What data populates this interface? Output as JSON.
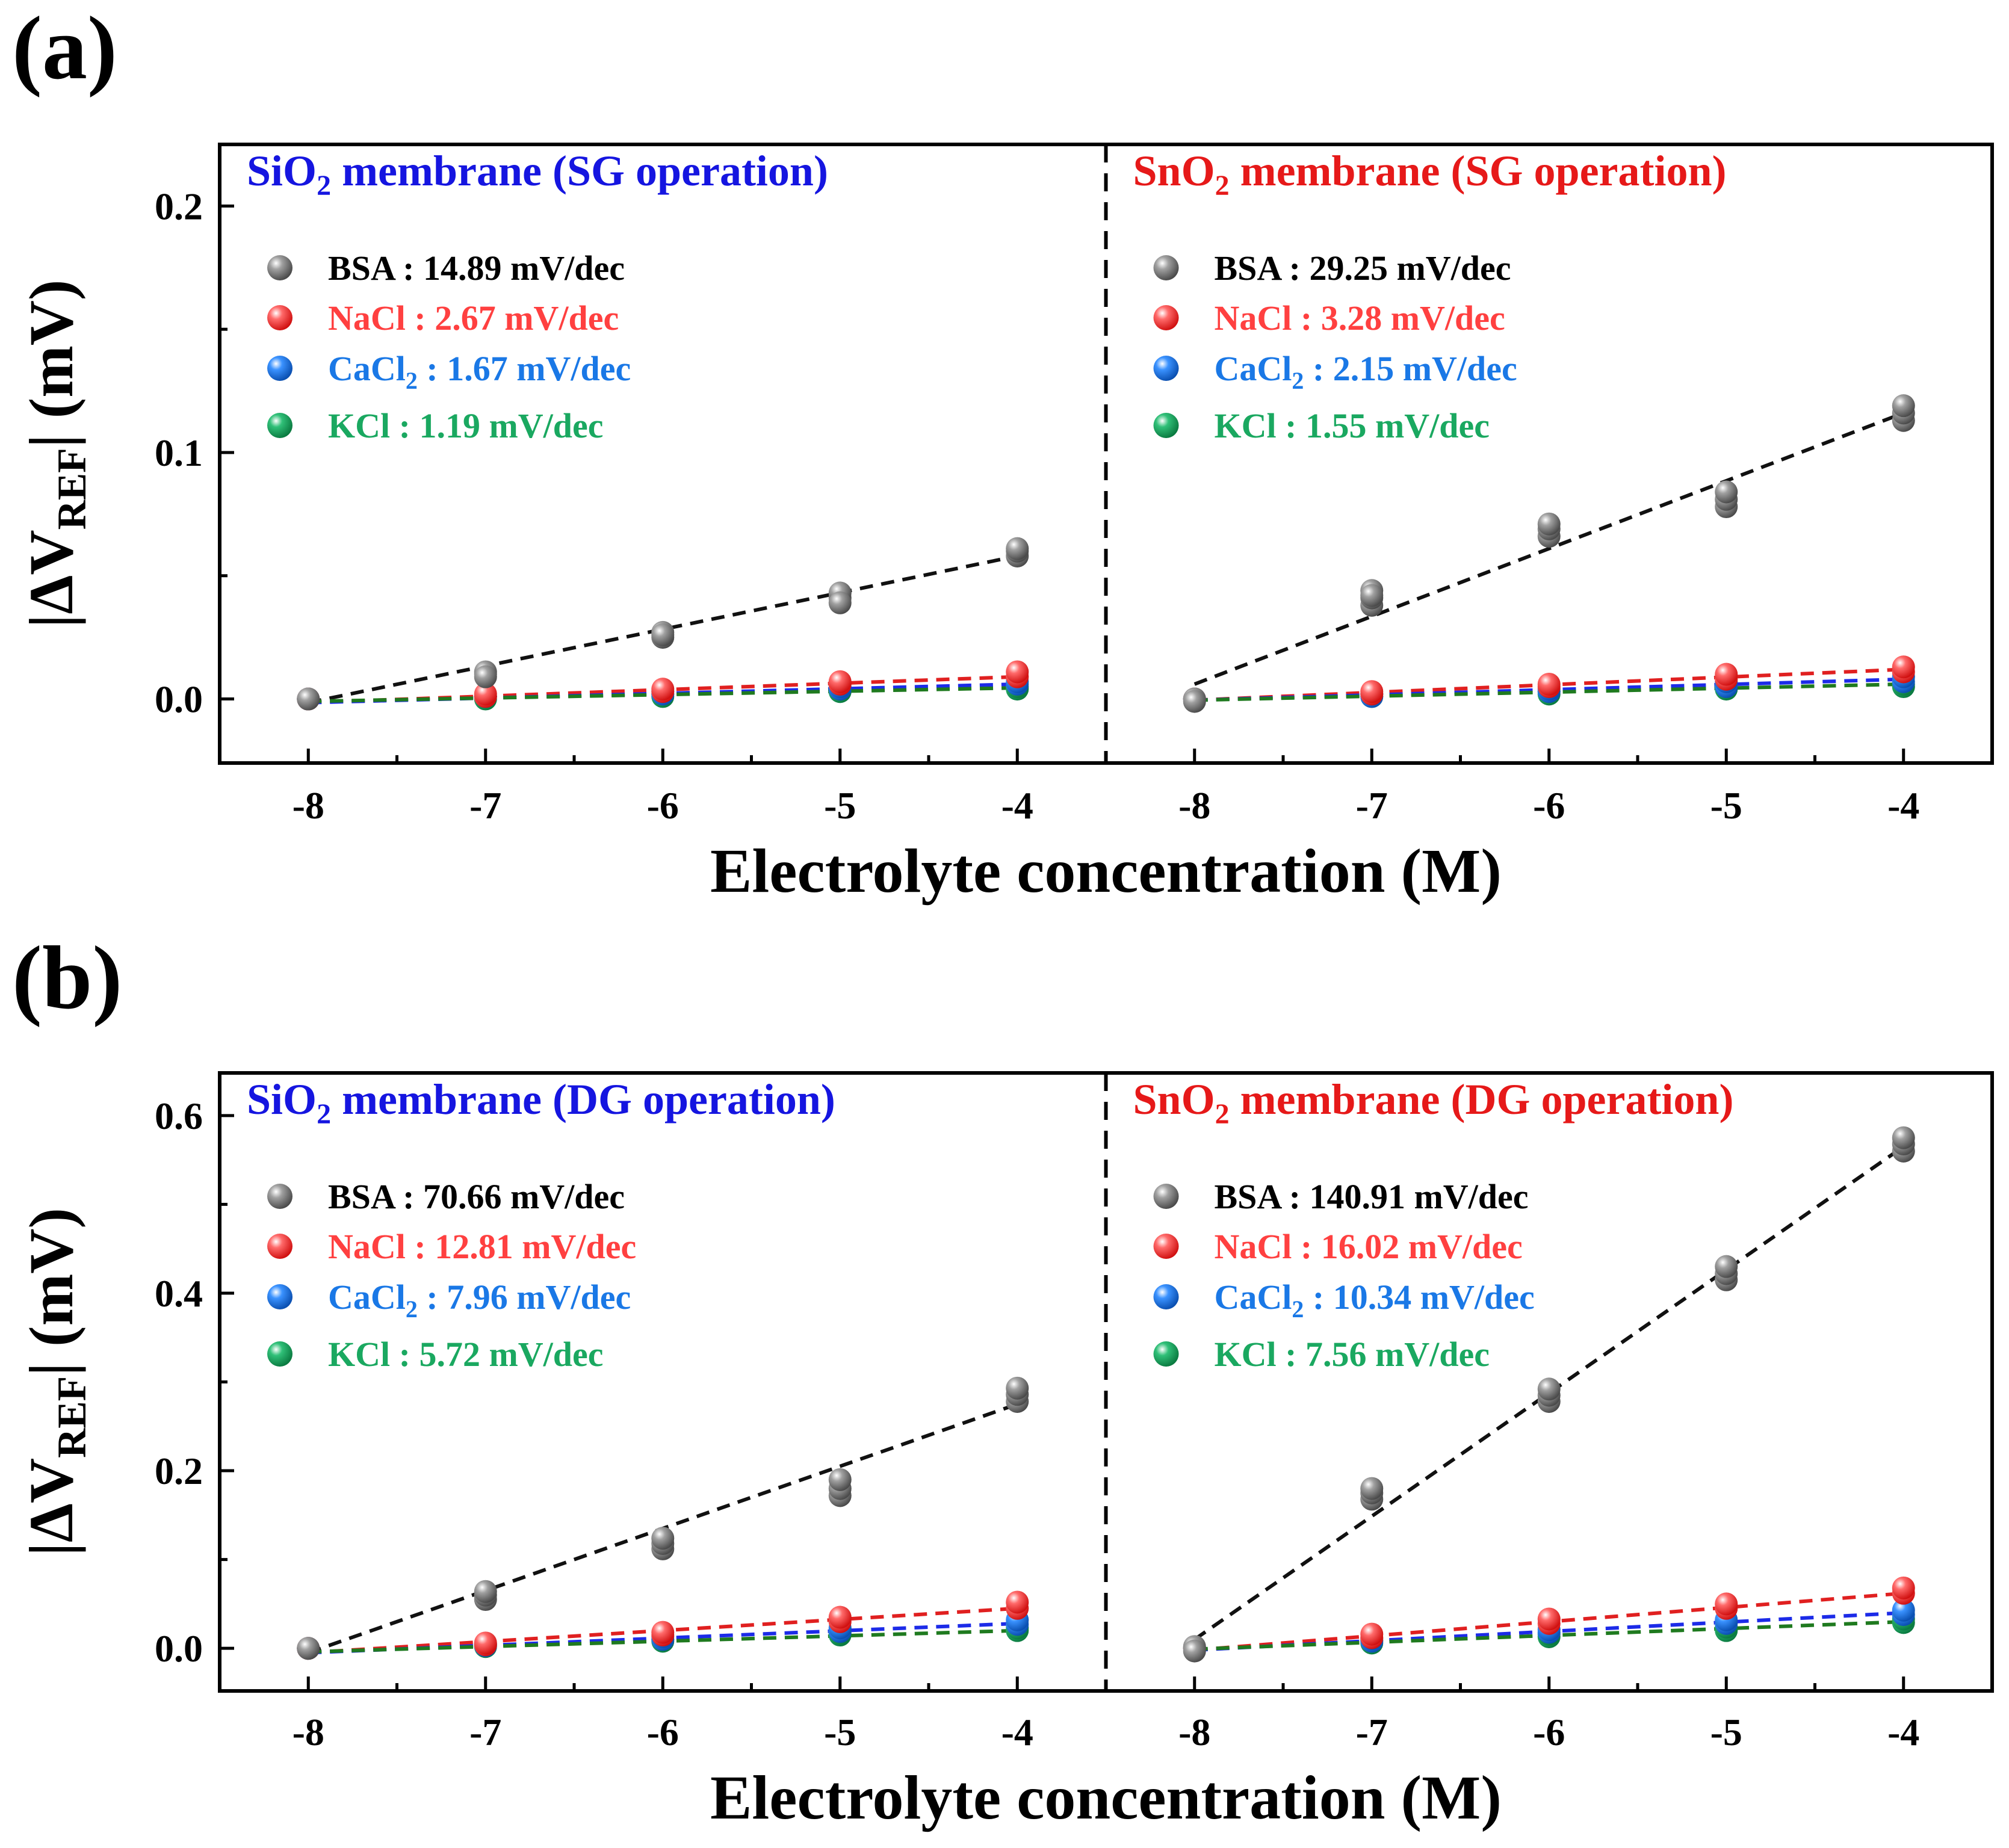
{
  "colors": {
    "BSA": "#7a7a7a",
    "NaCl": "#ff4040",
    "CaCl2": "#1a78e6",
    "KCl": "#1aa860",
    "fit_BSA": "#111111",
    "fit_NaCl": "#e02020",
    "fit_CaCl2": "#1c2be8",
    "fit_KCl": "#1f7a1f",
    "sio2_title": "#1515e0",
    "sno2_title": "#e61919"
  },
  "chart_data": [
    {
      "id": "a",
      "panel_label": "(a)",
      "type": "scatter",
      "xlabel": "Electrolyte concentration (M)",
      "ylabel": "|ΔV",
      "ylabel_sub": "REF",
      "ylabel_tail": "| (mV)",
      "ylim": [
        -0.026,
        0.225
      ],
      "yticks": [
        0.0,
        0.1,
        0.2
      ],
      "ytick_labels": [
        "0.0",
        "0.1",
        "0.2"
      ],
      "xticks": [
        -8,
        -7,
        -6,
        -5,
        -4
      ],
      "xtick_labels": [
        "-8",
        "-7",
        "-6",
        "-5",
        "-4"
      ],
      "xlim": [
        -8.5,
        -3.5
      ],
      "subpanels": [
        {
          "title_pre": "SiO",
          "title_sub": "2",
          "title_post": " membrane (SG operation)",
          "title_color_key": "sio2_title",
          "series": [
            {
              "key": "BSA",
              "name_pre": "BSA",
              "name_sub": "",
              "name_post": " : 14.89 mV/dec",
              "fit": [
                -0.0015,
                0.058
              ],
              "points": {
                "x": [
                  -8,
                  -7,
                  -7,
                  -7,
                  -6,
                  -6,
                  -6,
                  -5,
                  -5,
                  -5,
                  -4,
                  -4,
                  -4
                ],
                "y": [
                  0,
                  0.01,
                  0.011,
                  0.009,
                  0.025,
                  0.027,
                  0.026,
                  0.041,
                  0.043,
                  0.039,
                  0.058,
                  0.06,
                  0.061
                ]
              }
            },
            {
              "key": "NaCl",
              "name_pre": "NaCl",
              "name_sub": "",
              "name_post": " : 2.67 mV/dec",
              "fit": [
                -0.0015,
                0.009
              ],
              "points": {
                "x": [
                  -8,
                  -7,
                  -7,
                  -6,
                  -6,
                  -5,
                  -5,
                  -4,
                  -4
                ],
                "y": [
                  0,
                  0.001,
                  0.002,
                  0.003,
                  0.004,
                  0.006,
                  0.007,
                  0.009,
                  0.011
                ]
              }
            },
            {
              "key": "CaCl2",
              "name_pre": "CaCl",
              "name_sub": "2",
              "name_post": " : 1.67 mV/dec",
              "fit": [
                -0.0015,
                0.006
              ],
              "points": {
                "x": [
                  -8,
                  -7,
                  -7,
                  -6,
                  -6,
                  -5,
                  -5,
                  -4,
                  -4
                ],
                "y": [
                  0,
                  0.001,
                  0.001,
                  0.002,
                  0.003,
                  0.004,
                  0.005,
                  0.006,
                  0.007
                ]
              }
            },
            {
              "key": "KCl",
              "name_pre": "KCl",
              "name_sub": "",
              "name_post": " : 1.19 mV/dec",
              "fit": [
                -0.001,
                0.0045
              ],
              "points": {
                "x": [
                  -8,
                  -7,
                  -7,
                  -6,
                  -6,
                  -5,
                  -5,
                  -4,
                  -4
                ],
                "y": [
                  0,
                  0.0,
                  0.001,
                  0.001,
                  0.002,
                  0.003,
                  0.004,
                  0.004,
                  0.005
                ]
              }
            }
          ]
        },
        {
          "title_pre": "SnO",
          "title_sub": "2",
          "title_post": " membrane (SG operation)",
          "title_color_key": "sno2_title",
          "series": [
            {
              "key": "BSA",
              "name_pre": "BSA",
              "name_sub": "",
              "name_post": " : 29.25 mV/dec",
              "fit": [
                0.006,
                0.116
              ],
              "points": {
                "x": [
                  -8,
                  -8,
                  -7,
                  -7,
                  -7,
                  -7,
                  -6,
                  -6,
                  -6,
                  -5,
                  -5,
                  -5,
                  -4,
                  -4,
                  -4
                ],
                "y": [
                  0,
                  -0.001,
                  0.038,
                  0.041,
                  0.044,
                  0.042,
                  0.066,
                  0.069,
                  0.071,
                  0.078,
                  0.081,
                  0.084,
                  0.113,
                  0.116,
                  0.119
                ]
              }
            },
            {
              "key": "NaCl",
              "name_pre": "NaCl",
              "name_sub": "",
              "name_post": " : 3.28 mV/dec",
              "fit": [
                -0.0005,
                0.012
              ],
              "points": {
                "x": [
                  -8,
                  -7,
                  -7,
                  -6,
                  -6,
                  -5,
                  -5,
                  -4,
                  -4
                ],
                "y": [
                  0,
                  0.002,
                  0.003,
                  0.005,
                  0.006,
                  0.008,
                  0.01,
                  0.011,
                  0.013
                ]
              }
            },
            {
              "key": "CaCl2",
              "name_pre": "CaCl",
              "name_sub": "2",
              "name_post": " : 2.15 mV/dec",
              "fit": [
                -0.0005,
                0.008
              ],
              "points": {
                "x": [
                  -8,
                  -7,
                  -7,
                  -6,
                  -6,
                  -5,
                  -5,
                  -4,
                  -4
                ],
                "y": [
                  0,
                  0.001,
                  0.002,
                  0.003,
                  0.004,
                  0.005,
                  0.007,
                  0.007,
                  0.009
                ]
              }
            },
            {
              "key": "KCl",
              "name_pre": "KCl",
              "name_sub": "",
              "name_post": " : 1.55 mV/dec",
              "fit": [
                -0.0005,
                0.006
              ],
              "points": {
                "x": [
                  -8,
                  -7,
                  -7,
                  -6,
                  -6,
                  -5,
                  -5,
                  -4,
                  -4
                ],
                "y": [
                  0,
                  0.001,
                  0.002,
                  0.002,
                  0.003,
                  0.004,
                  0.005,
                  0.005,
                  0.006
                ]
              }
            }
          ]
        }
      ]
    },
    {
      "id": "b",
      "panel_label": "(b)",
      "type": "scatter",
      "xlabel": "Electrolyte concentration (M)",
      "ylabel": "|ΔV",
      "ylabel_sub": "REF",
      "ylabel_tail": "| (mV)",
      "ylim": [
        -0.048,
        0.648
      ],
      "yticks": [
        0.0,
        0.2,
        0.4,
        0.6
      ],
      "ytick_labels": [
        "0.0",
        "0.2",
        "0.4",
        "0.6"
      ],
      "xticks": [
        -8,
        -7,
        -6,
        -5,
        -4
      ],
      "xtick_labels": [
        "-8",
        "-7",
        "-6",
        "-5",
        "-4"
      ],
      "xlim": [
        -8.5,
        -3.5
      ],
      "subpanels": [
        {
          "title_pre": "SiO",
          "title_sub": "2",
          "title_post": " membrane (DG operation)",
          "title_color_key": "sio2_title",
          "series": [
            {
              "key": "BSA",
              "name_pre": "BSA",
              "name_sub": "",
              "name_post": " : 70.66 mV/dec",
              "fit": [
                -0.005,
                0.275
              ],
              "points": {
                "x": [
                  -8,
                  -7,
                  -7,
                  -7,
                  -6,
                  -6,
                  -6,
                  -5,
                  -5,
                  -5,
                  -4,
                  -4,
                  -4
                ],
                "y": [
                  0,
                  0.055,
                  0.06,
                  0.064,
                  0.112,
                  0.118,
                  0.124,
                  0.172,
                  0.18,
                  0.19,
                  0.278,
                  0.286,
                  0.293
                ]
              }
            },
            {
              "key": "NaCl",
              "name_pre": "NaCl",
              "name_sub": "",
              "name_post": " : 12.81 mV/dec",
              "fit": [
                -0.005,
                0.045
              ],
              "points": {
                "x": [
                  -8,
                  -7,
                  -7,
                  -6,
                  -6,
                  -5,
                  -5,
                  -4,
                  -4
                ],
                "y": [
                  0,
                  0.004,
                  0.006,
                  0.015,
                  0.018,
                  0.03,
                  0.035,
                  0.045,
                  0.052
                ]
              }
            },
            {
              "key": "CaCl2",
              "name_pre": "CaCl",
              "name_sub": "2",
              "name_post": " : 7.96 mV/dec",
              "fit": [
                -0.005,
                0.028
              ],
              "points": {
                "x": [
                  -8,
                  -7,
                  -7,
                  -6,
                  -6,
                  -5,
                  -5,
                  -4,
                  -4
                ],
                "y": [
                  0,
                  0.003,
                  0.005,
                  0.01,
                  0.013,
                  0.019,
                  0.023,
                  0.027,
                  0.032
                ]
              }
            },
            {
              "key": "KCl",
              "name_pre": "KCl",
              "name_sub": "",
              "name_post": " : 5.72 mV/dec",
              "fit": [
                -0.004,
                0.02
              ],
              "points": {
                "x": [
                  -8,
                  -7,
                  -7,
                  -6,
                  -6,
                  -5,
                  -5,
                  -4,
                  -4
                ],
                "y": [
                  0,
                  0.002,
                  0.004,
                  0.008,
                  0.01,
                  0.015,
                  0.017,
                  0.02,
                  0.023
                ]
              }
            }
          ]
        },
        {
          "title_pre": "SnO",
          "title_sub": "2",
          "title_post": " membrane (DG operation)",
          "title_color_key": "sno2_title",
          "series": [
            {
              "key": "BSA",
              "name_pre": "BSA",
              "name_sub": "",
              "name_post": " : 140.91 mV/dec",
              "fit": [
                0.01,
                0.565
              ],
              "points": {
                "x": [
                  -8,
                  -8,
                  -7,
                  -7,
                  -7,
                  -6,
                  -6,
                  -6,
                  -5,
                  -5,
                  -5,
                  -4,
                  -4,
                  -4
                ],
                "y": [
                  0.002,
                  -0.003,
                  0.168,
                  0.175,
                  0.18,
                  0.278,
                  0.285,
                  0.292,
                  0.415,
                  0.422,
                  0.43,
                  0.56,
                  0.568,
                  0.575
                ]
              }
            },
            {
              "key": "NaCl",
              "name_pre": "NaCl",
              "name_sub": "",
              "name_post": " : 16.02 mV/dec",
              "fit": [
                -0.002,
                0.062
              ],
              "points": {
                "x": [
                  -8,
                  -7,
                  -7,
                  -6,
                  -6,
                  -5,
                  -5,
                  -4,
                  -4
                ],
                "y": [
                  0,
                  0.012,
                  0.016,
                  0.028,
                  0.033,
                  0.045,
                  0.05,
                  0.062,
                  0.068
                ]
              }
            },
            {
              "key": "CaCl2",
              "name_pre": "CaCl",
              "name_sub": "2",
              "name_post": " : 10.34 mV/dec",
              "fit": [
                -0.002,
                0.04
              ],
              "points": {
                "x": [
                  -8,
                  -7,
                  -7,
                  -6,
                  -6,
                  -5,
                  -5,
                  -4,
                  -4
                ],
                "y": [
                  0,
                  0.008,
                  0.011,
                  0.018,
                  0.021,
                  0.028,
                  0.032,
                  0.038,
                  0.043
                ]
              }
            },
            {
              "key": "KCl",
              "name_pre": "KCl",
              "name_sub": "",
              "name_post": " : 7.56 mV/dec",
              "fit": [
                -0.001,
                0.03
              ],
              "points": {
                "x": [
                  -8,
                  -7,
                  -7,
                  -6,
                  -6,
                  -5,
                  -5,
                  -4,
                  -4
                ],
                "y": [
                  0,
                  0.006,
                  0.009,
                  0.013,
                  0.016,
                  0.02,
                  0.024,
                  0.029,
                  0.033
                ]
              }
            }
          ]
        }
      ]
    }
  ]
}
